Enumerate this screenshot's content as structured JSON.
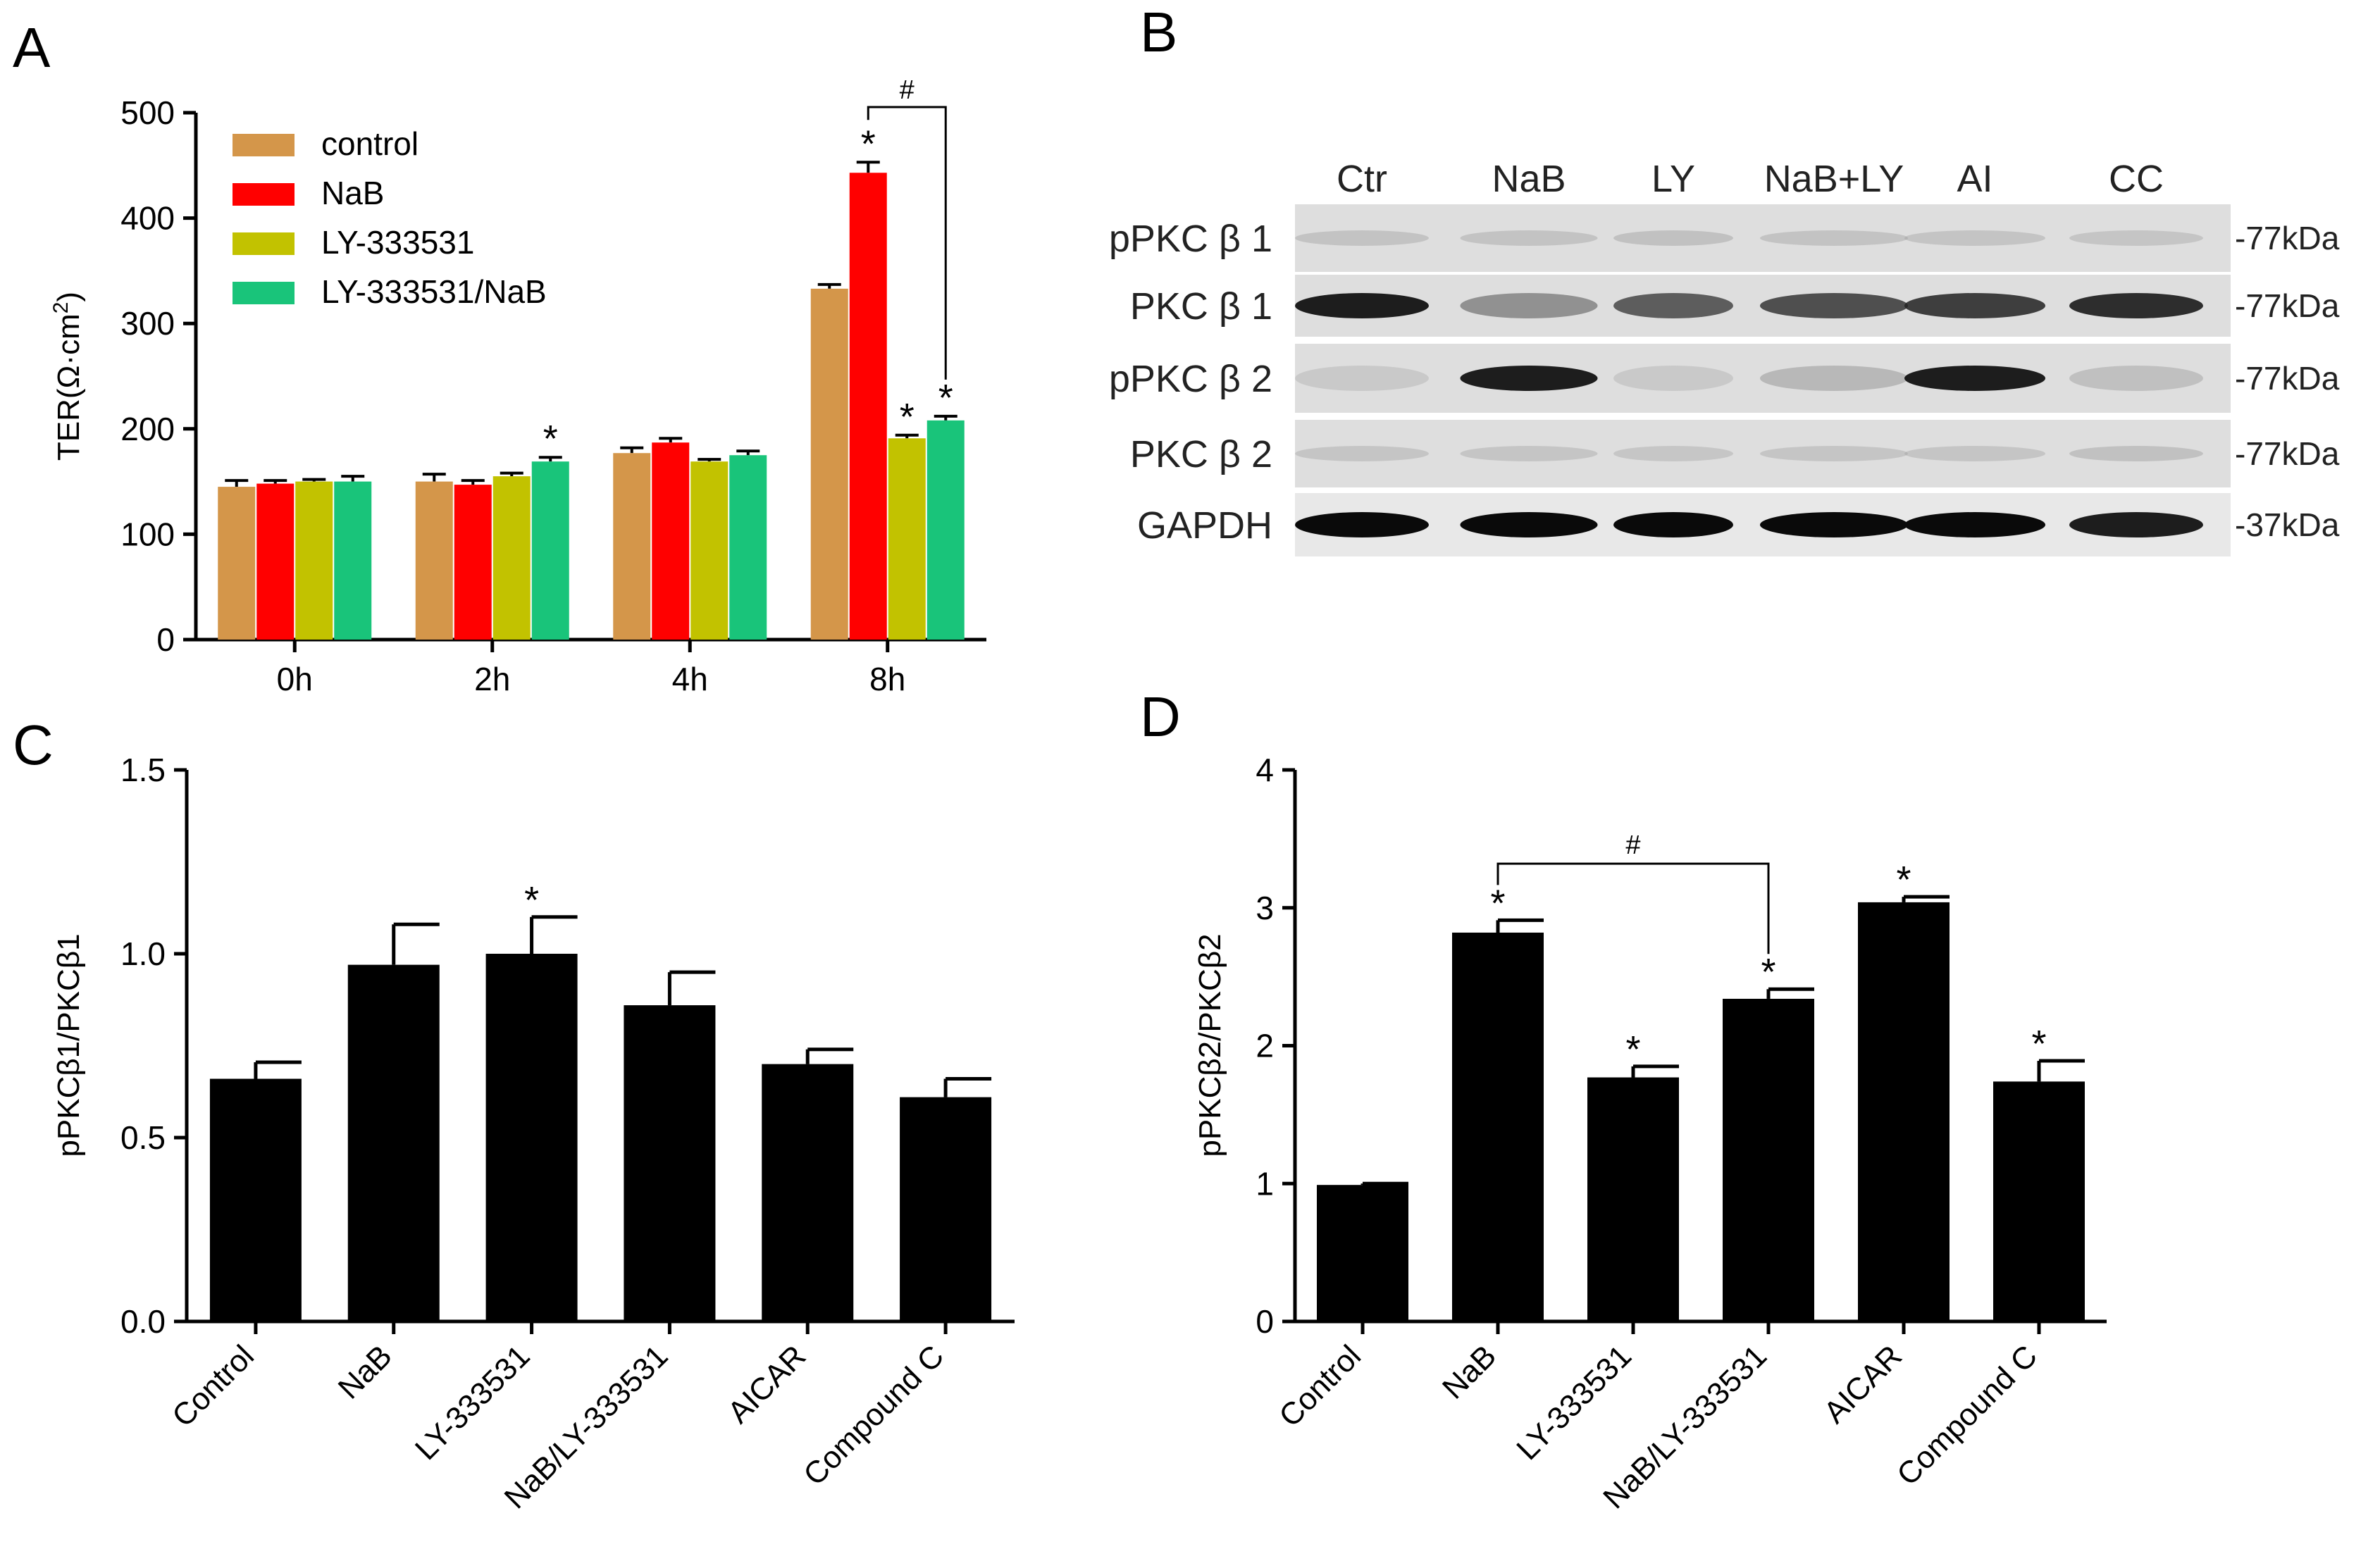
{
  "panel_labels": {
    "a": "A",
    "b": "B",
    "c": "C",
    "d": "D"
  },
  "colors": {
    "control": "#d4964a",
    "NaB": "#ff0000",
    "LY-333531": "#c2c200",
    "LY-333531/NaB": "#19c47a",
    "bar": "#000000"
  },
  "blot": {
    "lanes": [
      "Ctr",
      "NaB",
      "LY",
      "NaB+LY",
      "AI",
      "CC"
    ],
    "rows": [
      {
        "name": "pPKC β 1",
        "mw": "-77kDa",
        "intensity": [
          0.15,
          0.15,
          0.18,
          0.15,
          0.13,
          0.12
        ]
      },
      {
        "name": "PKC β 1",
        "mw": "-77kDa",
        "intensity": [
          0.95,
          0.55,
          0.75,
          0.8,
          0.85,
          0.9
        ]
      },
      {
        "name": "pPKC β 2",
        "mw": "-77kDa",
        "intensity": [
          0.05,
          0.95,
          0.04,
          0.35,
          0.95,
          0.2
        ]
      },
      {
        "name": "PKC β 2",
        "mw": "-77kDa",
        "intensity": [
          0.12,
          0.12,
          0.1,
          0.12,
          0.12,
          0.18
        ]
      },
      {
        "name": "GAPDH",
        "mw": "-37kDa",
        "intensity": [
          1.0,
          1.0,
          1.0,
          1.0,
          1.0,
          0.95
        ]
      }
    ]
  },
  "chart_data": [
    {
      "type": "bar",
      "categories": [
        "0h",
        "2h",
        "4h",
        "8h"
      ],
      "ylabel_main": "TER(Ω·cm",
      "ylabel_sup": "2",
      "ylabel_end": ")",
      "ylim": [
        0,
        500
      ],
      "yticks": [
        "0",
        "100",
        "200",
        "300",
        "400",
        "500"
      ],
      "legend_position": "top-left",
      "series": [
        {
          "name": "control",
          "values": [
            145,
            150,
            177,
            333
          ],
          "errors": [
            6,
            7,
            5,
            4
          ],
          "stars": [
            false,
            false,
            false,
            false
          ]
        },
        {
          "name": "NaB",
          "values": [
            148,
            147,
            187,
            443
          ],
          "errors": [
            3,
            4,
            4,
            10
          ],
          "stars": [
            false,
            false,
            false,
            true
          ]
        },
        {
          "name": "LY-333531",
          "values": [
            150,
            155,
            169,
            191
          ],
          "errors": [
            2,
            3,
            2,
            3
          ],
          "stars": [
            false,
            false,
            false,
            true
          ]
        },
        {
          "name": "LY-333531/NaB",
          "values": [
            150,
            169,
            175,
            208
          ],
          "errors": [
            5,
            4,
            4,
            4
          ],
          "stars": [
            false,
            true,
            false,
            true
          ]
        }
      ],
      "annotations": [
        {
          "text": "#",
          "from": "NaB@8h",
          "to": "LY-333531/NaB@8h"
        }
      ],
      "star_label": "*"
    },
    {
      "type": "bar",
      "categories": [
        "Control",
        "NaB",
        "LY-333531",
        "NaB/LY-333531",
        "AICAR",
        "Compound C"
      ],
      "ylabel": "pPKCβ1/PKCβ1",
      "ylim": [
        0,
        1.5
      ],
      "yticks": [
        "0.0",
        "0.5",
        "1.0",
        "1.5"
      ],
      "values": [
        0.66,
        0.97,
        1.0,
        0.86,
        0.7,
        0.61
      ],
      "errors": [
        0.045,
        0.11,
        0.1,
        0.09,
        0.04,
        0.05
      ],
      "stars": [
        false,
        false,
        true,
        false,
        false,
        false
      ],
      "star_label": "*"
    },
    {
      "type": "bar",
      "categories": [
        "Control",
        "NaB",
        "LY-333531",
        "NaB/LY-333531",
        "AICAR",
        "Compound C"
      ],
      "ylabel": "pPKCβ2/PKCβ2",
      "ylim": [
        0,
        4
      ],
      "yticks": [
        "0",
        "1",
        "2",
        "3",
        "4"
      ],
      "values": [
        0.99,
        2.82,
        1.77,
        2.34,
        3.04,
        1.74
      ],
      "errors": [
        0.01,
        0.09,
        0.08,
        0.07,
        0.04,
        0.15
      ],
      "stars": [
        false,
        true,
        true,
        true,
        true,
        true
      ],
      "star_label": "*",
      "annotations": [
        {
          "text": "#",
          "from": "NaB",
          "to": "NaB/LY-333531"
        }
      ]
    }
  ]
}
